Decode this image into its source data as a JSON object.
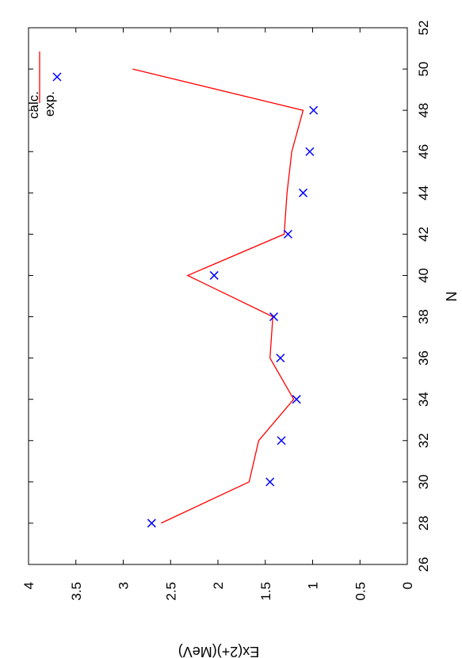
{
  "chart_data": {
    "type": "line",
    "orientation": "rotated-90-ccw",
    "xlabel": "N",
    "ylabel": "Ex(2+)(MeV)",
    "xlim": [
      26,
      52
    ],
    "ylim": [
      0,
      4
    ],
    "x_ticks": [
      "26",
      "28",
      "30",
      "32",
      "34",
      "36",
      "38",
      "40",
      "42",
      "44",
      "46",
      "48",
      "50",
      "52"
    ],
    "y_ticks": [
      "0",
      "0.5",
      "1",
      "1.5",
      "2",
      "2.5",
      "3",
      "3.5",
      "4"
    ],
    "grid": false,
    "legend_position": "top-right",
    "series": [
      {
        "name": "calc.",
        "style": "line",
        "color": "#ff0000",
        "x": [
          28,
          30,
          32,
          34,
          36,
          38,
          40,
          42,
          44,
          46,
          48,
          50
        ],
        "y": [
          2.6,
          1.67,
          1.57,
          1.2,
          1.45,
          1.42,
          2.32,
          1.3,
          1.27,
          1.22,
          1.1,
          2.9
        ]
      },
      {
        "name": "exp.",
        "style": "cross",
        "color": "#0000ff",
        "x": [
          28,
          30,
          32,
          34,
          36,
          38,
          40,
          42,
          44,
          46,
          48
        ],
        "y": [
          2.7,
          1.45,
          1.33,
          1.17,
          1.34,
          1.41,
          2.04,
          1.26,
          1.1,
          1.03,
          0.99
        ]
      }
    ]
  }
}
